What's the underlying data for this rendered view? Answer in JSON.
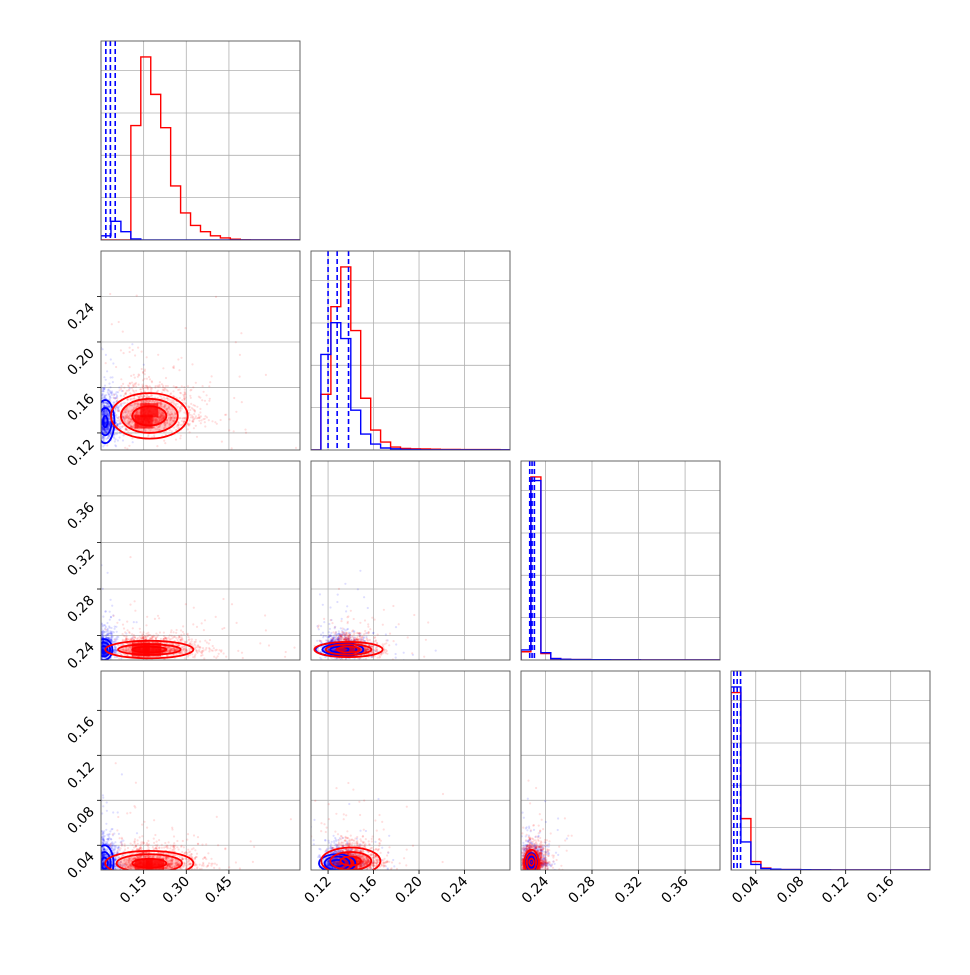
{
  "chart_data": {
    "type": "corner",
    "grid": true,
    "colors": {
      "series_a": "#ff0000",
      "series_b": "#0000ff",
      "frame": "#555555",
      "grid": "#b0b0b0"
    },
    "series": [
      {
        "name": "",
        "color": "#ff0000"
      },
      {
        "name": "",
        "color": "#0000ff"
      }
    ],
    "parameters": [
      {
        "index": 0,
        "range": [
          0.0,
          0.7
        ],
        "ticks": [
          0.15,
          0.3,
          0.45
        ],
        "tick_labels": [
          "0.15",
          "0.30",
          "0.45"
        ]
      },
      {
        "index": 1,
        "range": [
          0.105,
          0.28
        ],
        "ticks": [
          0.12,
          0.16,
          0.2,
          0.24
        ],
        "tick_labels": [
          "0.12",
          "0.16",
          "0.20",
          "0.24"
        ]
      },
      {
        "index": 2,
        "range": [
          0.219,
          0.39
        ],
        "ticks": [
          0.24,
          0.28,
          0.32,
          0.36
        ],
        "tick_labels": [
          "0.24",
          "0.28",
          "0.32",
          "0.36"
        ]
      },
      {
        "index": 3,
        "range": [
          0.018,
          0.195
        ],
        "ticks": [
          0.04,
          0.08,
          0.12,
          0.16
        ],
        "tick_labels": [
          "0.04",
          "0.08",
          "0.12",
          "0.16"
        ]
      }
    ],
    "histograms": [
      {
        "param": 0,
        "red": {
          "bins": [
            0.0,
            0.035,
            0.07,
            0.105,
            0.14,
            0.175,
            0.21,
            0.245,
            0.28,
            0.315,
            0.35,
            0.385,
            0.42,
            0.455,
            0.49,
            0.525,
            0.56,
            0.595,
            0.63,
            0.665,
            0.7
          ],
          "counts": [
            0,
            0,
            0,
            55,
            88,
            70,
            54,
            26,
            13,
            7,
            4,
            2,
            1,
            0.4,
            0.1,
            0,
            0,
            0,
            0,
            0
          ]
        },
        "blue": {
          "bins": [
            0.0,
            0.035,
            0.07,
            0.105,
            0.14,
            0.175,
            0.21,
            0.245,
            0.28,
            0.315,
            0.35,
            0.385,
            0.42,
            0.455,
            0.49,
            0.525,
            0.56,
            0.595,
            0.63,
            0.665,
            0.7
          ],
          "counts": [
            2,
            9,
            4,
            0.5,
            0,
            0,
            0,
            0,
            0,
            0,
            0,
            0,
            0,
            0,
            0,
            0,
            0,
            0,
            0,
            0
          ]
        },
        "quantiles_blue": [
          0.017,
          0.033,
          0.05
        ],
        "quantiles_red": []
      },
      {
        "param": 1,
        "red": {
          "bins": [
            0.105,
            0.1137,
            0.1225,
            0.1312,
            0.14,
            0.1487,
            0.1575,
            0.1662,
            0.175,
            0.1837,
            0.1925,
            0.2012,
            0.21,
            0.2187,
            0.2275,
            0.2362,
            0.245,
            0.2537,
            0.2625,
            0.2712,
            0.28
          ],
          "counts": [
            0,
            28,
            72,
            92,
            60,
            26,
            10,
            4,
            1.5,
            0.8,
            0.6,
            0.5,
            0.4,
            0.3,
            0.3,
            0.2,
            0.2,
            0.2,
            0.2,
            0.1
          ]
        },
        "blue": {
          "bins": [
            0.105,
            0.1137,
            0.1225,
            0.1312,
            0.14,
            0.1487,
            0.1575,
            0.1662,
            0.175,
            0.1837,
            0.1925,
            0.2012,
            0.21,
            0.2187,
            0.2275,
            0.2362,
            0.245,
            0.2537,
            0.2625,
            0.2712,
            0.28
          ],
          "counts": [
            0,
            48,
            64,
            56,
            20,
            8,
            3,
            1,
            0.6,
            0.3,
            0.2,
            0.1,
            0.1,
            0.1,
            0.1,
            0.1,
            0.1,
            0.1,
            0.1,
            0.1
          ]
        },
        "quantiles_blue": [
          0.12,
          0.128,
          0.138
        ],
        "quantiles_red": []
      },
      {
        "param": 2,
        "red": {
          "bins": [
            0.219,
            0.2275,
            0.2361,
            0.2446,
            0.2532,
            0.2617,
            0.2703,
            0.2788,
            0.2874,
            0.2959,
            0.3045,
            0.313,
            0.3216,
            0.3301,
            0.3387,
            0.3472,
            0.3558,
            0.3643,
            0.3729,
            0.3814,
            0.39
          ],
          "counts": [
            9,
            200,
            7,
            1.5,
            0.8,
            0.5,
            0.4,
            0.3,
            0.3,
            0.2,
            0.2,
            0.2,
            0.1,
            0.1,
            0.1,
            0.1,
            0.1,
            0.1,
            0.1,
            0.1
          ]
        },
        "blue": {
          "bins": [
            0.219,
            0.2275,
            0.2361,
            0.2446,
            0.2532,
            0.2617,
            0.2703,
            0.2788,
            0.2874,
            0.2959,
            0.3045,
            0.313,
            0.3216,
            0.3301,
            0.3387,
            0.3472,
            0.3558,
            0.3643,
            0.3729,
            0.3814,
            0.39
          ],
          "counts": [
            11,
            196,
            8,
            1.5,
            0.8,
            0.5,
            0.4,
            0.3,
            0.3,
            0.2,
            0.2,
            0.2,
            0.1,
            0.1,
            0.1,
            0.1,
            0.1,
            0.1,
            0.1,
            0.1
          ]
        },
        "quantiles_blue": [
          0.2265,
          0.2285,
          0.2305
        ],
        "quantiles_red": []
      },
      {
        "param": 3,
        "red": {
          "bins": [
            0.018,
            0.0268,
            0.0357,
            0.0446,
            0.0534,
            0.0622,
            0.0711,
            0.08,
            0.0888,
            0.0976,
            0.1065,
            0.1154,
            0.1242,
            0.133,
            0.1419,
            0.1508,
            0.1596,
            0.1684,
            0.1773,
            0.1862,
            0.195
          ],
          "counts": [
            190,
            55,
            9,
            2,
            0.8,
            0.5,
            0.4,
            0.3,
            0.2,
            0.2,
            0.1,
            0.1,
            0.1,
            0.1,
            0.1,
            0.1,
            0.1,
            0.1,
            0.1,
            0.1
          ]
        },
        "blue": {
          "bins": [
            0.018,
            0.0268,
            0.0357,
            0.0446,
            0.0534,
            0.0622,
            0.0711,
            0.08,
            0.0888,
            0.0976,
            0.1065,
            0.1154,
            0.1242,
            0.133,
            0.1419,
            0.1508,
            0.1596,
            0.1684,
            0.1773,
            0.1862,
            0.195
          ],
          "counts": [
            196,
            30,
            6,
            1.5,
            0.8,
            0.5,
            0.4,
            0.3,
            0.2,
            0.2,
            0.1,
            0.1,
            0.1,
            0.1,
            0.1,
            0.1,
            0.1,
            0.1,
            0.1,
            0.1
          ]
        },
        "quantiles_blue": [
          0.0205,
          0.0235,
          0.0265
        ],
        "quantiles_red": []
      }
    ],
    "pair_plots": [
      {
        "row": 1,
        "col": 0,
        "red": {
          "center": [
            0.17,
            0.135
          ],
          "spread": [
            0.085,
            0.015
          ],
          "peak_cells": [
            [
              0.15,
              0.13
            ],
            [
              0.17,
              0.14
            ]
          ],
          "contours": [
            {
              "rx": 0.06,
              "ry": 0.0085
            },
            {
              "rx": 0.1,
              "ry": 0.015
            },
            {
              "rx": 0.135,
              "ry": 0.02
            }
          ]
        },
        "blue": {
          "center": [
            0.015,
            0.13
          ],
          "spread": [
            0.025,
            0.014
          ],
          "contours": [
            {
              "rx": 0.008,
              "ry": 0.005
            },
            {
              "rx": 0.022,
              "ry": 0.012
            },
            {
              "rx": 0.032,
              "ry": 0.019
            }
          ]
        }
      },
      {
        "row": 2,
        "col": 0,
        "red": {
          "center": [
            0.17,
            0.228
          ],
          "spread": [
            0.085,
            0.006
          ],
          "peak_cells": [
            [
              0.14,
              0.228
            ],
            [
              0.18,
              0.228
            ]
          ],
          "contours": [
            {
              "rx": 0.06,
              "ry": 0.0025
            },
            {
              "rx": 0.11,
              "ry": 0.0045
            },
            {
              "rx": 0.155,
              "ry": 0.0075
            }
          ]
        },
        "blue": {
          "center": [
            0.01,
            0.228
          ],
          "spread": [
            0.02,
            0.008
          ],
          "contours": [
            {
              "rx": 0.012,
              "ry": 0.003
            },
            {
              "rx": 0.022,
              "ry": 0.006
            },
            {
              "rx": 0.03,
              "ry": 0.009
            }
          ]
        }
      },
      {
        "row": 2,
        "col": 1,
        "red": {
          "center": [
            0.138,
            0.228
          ],
          "spread": [
            0.012,
            0.006
          ],
          "peak_cells": [
            [
              0.135,
              0.228
            ]
          ],
          "contours": [
            {
              "rx": 0.01,
              "ry": 0.0025
            },
            {
              "rx": 0.02,
              "ry": 0.0045
            },
            {
              "rx": 0.03,
              "ry": 0.0065
            }
          ]
        },
        "blue": {
          "center": [
            0.13,
            0.228
          ],
          "spread": [
            0.012,
            0.007
          ],
          "contours": [
            {
              "rx": 0.008,
              "ry": 0.0025
            },
            {
              "rx": 0.015,
              "ry": 0.0045
            },
            {
              "rx": 0.021,
              "ry": 0.006
            }
          ]
        }
      },
      {
        "row": 3,
        "col": 0,
        "red": {
          "center": [
            0.17,
            0.024
          ],
          "spread": [
            0.085,
            0.008
          ],
          "peak_cells": [
            [
              0.15,
              0.022
            ],
            [
              0.19,
              0.022
            ]
          ],
          "contours": [
            {
              "rx": 0.06,
              "ry": 0.004
            },
            {
              "rx": 0.115,
              "ry": 0.008
            },
            {
              "rx": 0.155,
              "ry": 0.011
            }
          ]
        },
        "blue": {
          "center": [
            0.012,
            0.024
          ],
          "spread": [
            0.025,
            0.012
          ],
          "contours": [
            {
              "rx": 0.012,
              "ry": 0.005
            },
            {
              "rx": 0.022,
              "ry": 0.01
            },
            {
              "rx": 0.032,
              "ry": 0.016
            }
          ]
        }
      },
      {
        "row": 3,
        "col": 1,
        "red": {
          "center": [
            0.14,
            0.026
          ],
          "spread": [
            0.013,
            0.008
          ],
          "peak_cells": [
            [
              0.138,
              0.024
            ]
          ],
          "contours": [
            {
              "rx": 0.009,
              "ry": 0.004
            },
            {
              "rx": 0.018,
              "ry": 0.008
            },
            {
              "rx": 0.026,
              "ry": 0.012
            }
          ]
        },
        "blue": {
          "center": [
            0.128,
            0.024
          ],
          "spread": [
            0.011,
            0.008
          ],
          "contours": [
            {
              "rx": 0.006,
              "ry": 0.003
            },
            {
              "rx": 0.011,
              "ry": 0.006
            },
            {
              "rx": 0.016,
              "ry": 0.008
            }
          ]
        }
      },
      {
        "row": 3,
        "col": 2,
        "red": {
          "center": [
            0.228,
            0.025
          ],
          "spread": [
            0.006,
            0.008
          ],
          "peak_cells": [
            [
              0.228,
              0.022
            ]
          ],
          "contours": [
            {
              "rx": 0.002,
              "ry": 0.003
            },
            {
              "rx": 0.004,
              "ry": 0.007
            },
            {
              "rx": 0.006,
              "ry": 0.011
            }
          ]
        },
        "blue": {
          "center": [
            0.228,
            0.025
          ],
          "spread": [
            0.006,
            0.008
          ],
          "contours": [
            {
              "rx": 0.0015,
              "ry": 0.002
            },
            {
              "rx": 0.003,
              "ry": 0.005
            },
            {
              "rx": 0.0045,
              "ry": 0.008
            }
          ]
        }
      }
    ]
  }
}
